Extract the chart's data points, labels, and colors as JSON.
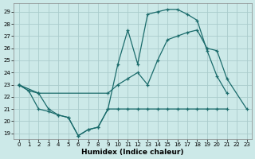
{
  "xlabel": "Humidex (Indice chaleur)",
  "xlim": [
    -0.5,
    23.5
  ],
  "ylim": [
    18.5,
    29.7
  ],
  "xticks": [
    0,
    1,
    2,
    3,
    4,
    5,
    6,
    7,
    8,
    9,
    10,
    11,
    12,
    13,
    14,
    15,
    16,
    17,
    18,
    19,
    20,
    21,
    22,
    23
  ],
  "yticks": [
    19,
    20,
    21,
    22,
    23,
    24,
    25,
    26,
    27,
    28,
    29
  ],
  "background_color": "#cce9e8",
  "grid_color": "#aacccc",
  "line_color": "#1a6b6b",
  "line1_x": [
    0,
    1,
    2,
    3,
    4,
    5,
    6,
    7,
    8,
    9,
    10,
    11,
    12,
    13,
    14,
    15,
    16,
    17,
    18,
    19,
    20,
    21
  ],
  "line1_y": [
    23.0,
    22.5,
    21.0,
    20.8,
    20.5,
    20.3,
    18.8,
    19.3,
    19.5,
    21.0,
    21.0,
    21.0,
    21.0,
    21.0,
    21.0,
    21.0,
    21.0,
    21.0,
    21.0,
    21.0,
    21.0,
    21.0
  ],
  "line2_x": [
    0,
    1,
    2,
    3,
    4,
    5,
    6,
    7,
    8,
    9,
    10,
    11,
    12,
    13,
    14,
    15,
    16,
    17,
    18,
    19,
    20,
    21
  ],
  "line2_y": [
    23.0,
    22.5,
    22.3,
    21.0,
    20.5,
    20.3,
    18.8,
    19.3,
    19.5,
    21.0,
    24.7,
    27.5,
    24.7,
    28.8,
    29.0,
    29.2,
    29.2,
    28.8,
    28.3,
    25.8,
    23.7,
    22.3
  ],
  "line3_x": [
    0,
    2,
    9,
    10,
    11,
    12,
    13,
    14,
    15,
    16,
    17,
    18,
    19,
    20,
    21,
    23
  ],
  "line3_y": [
    23.0,
    22.3,
    22.3,
    23.0,
    23.5,
    24.0,
    23.0,
    25.0,
    26.7,
    27.0,
    27.3,
    27.5,
    26.0,
    25.8,
    23.5,
    21.0
  ]
}
